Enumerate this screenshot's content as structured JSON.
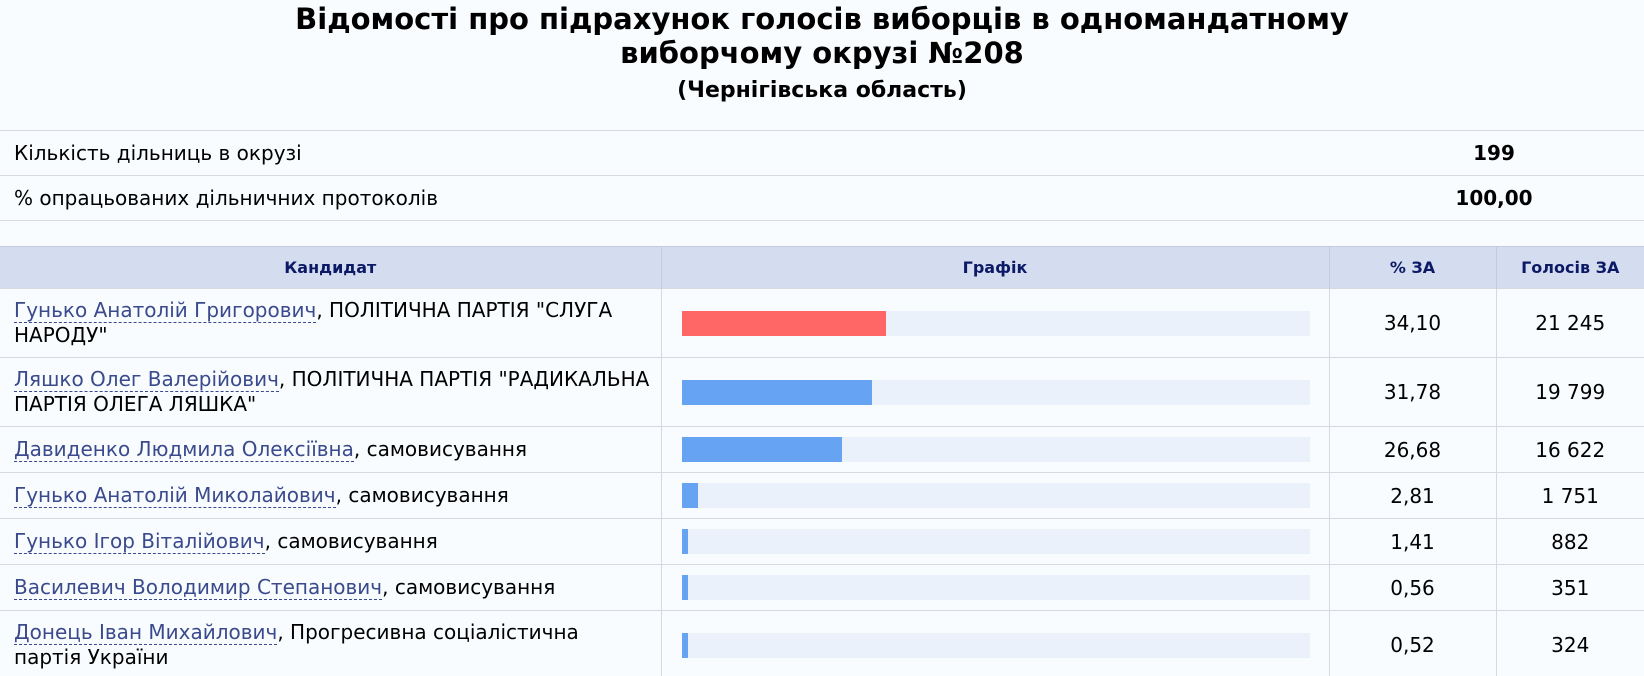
{
  "header": {
    "title_line1": "Відомості про підрахунок голосів виборців в одномандатному",
    "title_line2": "виборчому окрузі №208",
    "subtitle": "(Чернігівська область)"
  },
  "summary": [
    {
      "label": "Кількість дільниць в окрузі",
      "value": "199"
    },
    {
      "label": "% опрацьованих дільничних протоколів",
      "value": "100,00"
    }
  ],
  "table": {
    "columns": [
      "Кандидат",
      "Графік",
      "% ЗА",
      "Голосів ЗА"
    ],
    "rows": [
      {
        "name": "Гунько Анатолій Григорович",
        "affiliation": ", ПОЛІТИЧНА ПАРТІЯ \"СЛУГА НАРОДУ\"",
        "percent": "34,10",
        "votes": "21 245",
        "share": 34.1,
        "color": "#ff6666"
      },
      {
        "name": "Ляшко Олег Валерійович",
        "affiliation": ", ПОЛІТИЧНА ПАРТІЯ \"РАДИКАЛЬНА ПАРТІЯ ОЛЕГА ЛЯШКА\"",
        "percent": "31,78",
        "votes": "19 799",
        "share": 31.78,
        "color": "#66a3f2"
      },
      {
        "name": "Давиденко Людмила Олексіївна",
        "affiliation": ", самовисування",
        "percent": "26,68",
        "votes": "16 622",
        "share": 26.68,
        "color": "#66a3f2"
      },
      {
        "name": "Гунько Анатолій Миколайович",
        "affiliation": ", самовисування",
        "percent": "2,81",
        "votes": "1 751",
        "share": 2.81,
        "color": "#66a3f2"
      },
      {
        "name": "Гунько Ігор Віталійович",
        "affiliation": ", самовисування",
        "percent": "1,41",
        "votes": "882",
        "share": 1.41,
        "color": "#66a3f2"
      },
      {
        "name": "Василевич Володимир Степанович",
        "affiliation": ", самовисування",
        "percent": "0,56",
        "votes": "351",
        "share": 0.56,
        "color": "#66a3f2"
      },
      {
        "name": "Донець Іван Михайлович",
        "affiliation": ", Прогресивна соціалістична партія України",
        "percent": "0,52",
        "votes": "324",
        "share": 0.52,
        "color": "#66a3f2"
      }
    ]
  }
}
